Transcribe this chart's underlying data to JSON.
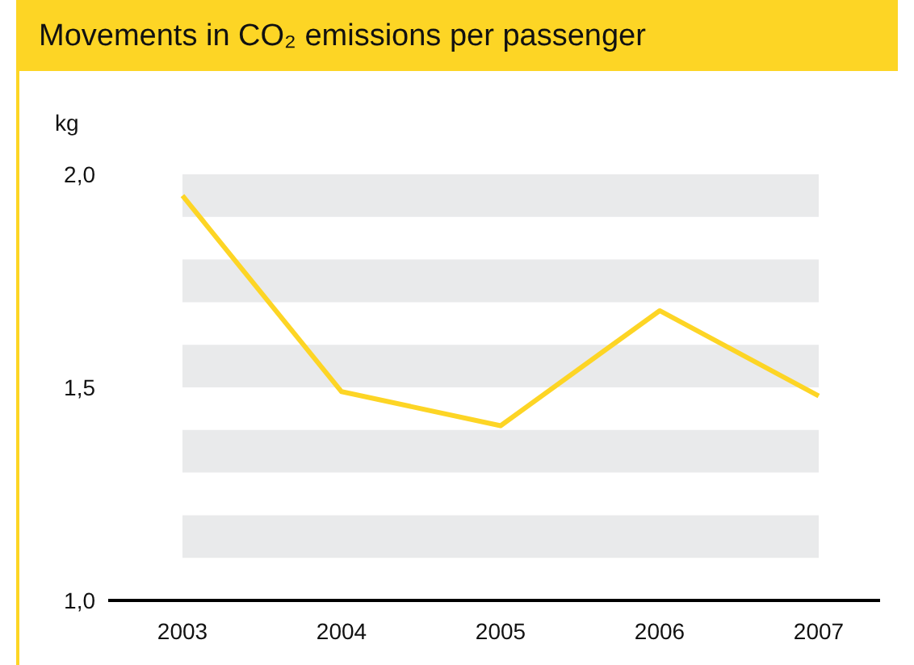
{
  "chart_data": {
    "type": "line",
    "title": "Movements in CO₂ emissions per passenger",
    "ylabel": "kg",
    "categories": [
      "2003",
      "2004",
      "2005",
      "2006",
      "2007"
    ],
    "series": [
      {
        "color": "#fdd525",
        "values": [
          1.95,
          1.49,
          1.41,
          1.68,
          1.48
        ]
      }
    ],
    "ylim": [
      1,
      2
    ],
    "yticks": [
      {
        "value": 1,
        "label": "1,0"
      },
      {
        "value": 1.5,
        "label": "1,5"
      },
      {
        "value": 2,
        "label": "2,0"
      }
    ],
    "grid": false,
    "legend": false,
    "marker": "none",
    "line_style": "solid",
    "bands": [
      {
        "axis": "y",
        "from": 1.9,
        "to": 2,
        "color": "#e9eaeb"
      },
      {
        "axis": "y",
        "from": 1.7,
        "to": 1.8,
        "color": "#e9eaeb"
      },
      {
        "axis": "y",
        "from": 1.5,
        "to": 1.6,
        "color": "#e9eaeb"
      },
      {
        "axis": "y",
        "from": 1.3,
        "to": 1.4,
        "color": "#e9eaeb"
      },
      {
        "axis": "y",
        "from": 1.1,
        "to": 1.2,
        "color": "#e9eaeb"
      }
    ]
  }
}
